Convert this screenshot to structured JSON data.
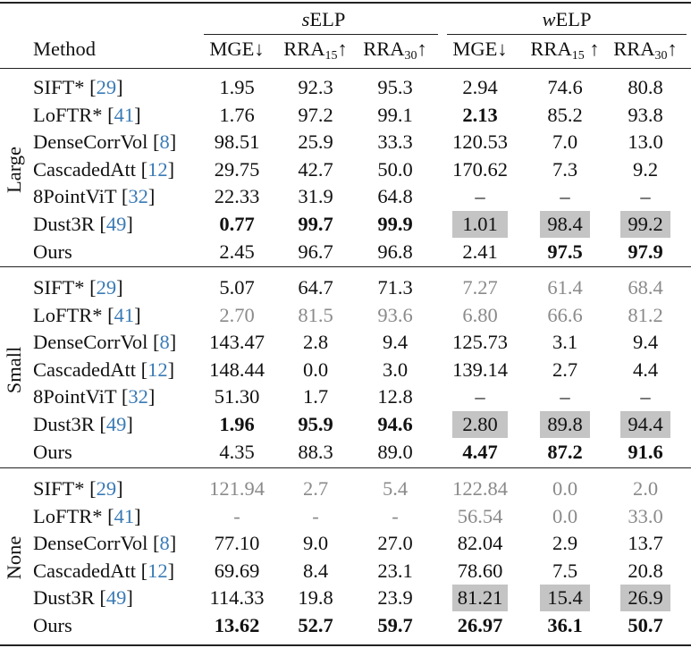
{
  "header": {
    "method": "Method",
    "selp": {
      "prefix": "s",
      "suffix": "ELP"
    },
    "welp": {
      "prefix": "w",
      "suffix": "ELP"
    },
    "cols": [
      {
        "base": "MGE",
        "sub": "",
        "arrow": "↓"
      },
      {
        "base": "RRA",
        "sub": "15",
        "arrow": "↑"
      },
      {
        "base": "RRA",
        "sub": "30",
        "arrow": "↑"
      },
      {
        "base": "MGE",
        "sub": "",
        "arrow": "↓"
      },
      {
        "base": "RRA",
        "sub": "15",
        "arrow": " ↑"
      },
      {
        "base": "RRA",
        "sub": "30",
        "arrow": "↑"
      }
    ]
  },
  "groups": [
    {
      "name": "Large",
      "rows": [
        {
          "method": "SIFT*",
          "ref": "29",
          "cells": [
            {
              "v": "1.95"
            },
            {
              "v": "92.3"
            },
            {
              "v": "95.3"
            },
            {
              "v": "2.94"
            },
            {
              "v": "74.6"
            },
            {
              "v": "80.8"
            }
          ]
        },
        {
          "method": "LoFTR*",
          "ref": "41",
          "cells": [
            {
              "v": "1.76"
            },
            {
              "v": "97.2"
            },
            {
              "v": "99.1"
            },
            {
              "v": "2.13",
              "bold": true
            },
            {
              "v": "85.2"
            },
            {
              "v": "93.8"
            }
          ]
        },
        {
          "method": "DenseCorrVol",
          "ref": "8",
          "cells": [
            {
              "v": "98.51"
            },
            {
              "v": "25.9"
            },
            {
              "v": "33.3"
            },
            {
              "v": "120.53"
            },
            {
              "v": "7.0"
            },
            {
              "v": "13.0"
            }
          ]
        },
        {
          "method": "CascadedAtt",
          "ref": "12",
          "cells": [
            {
              "v": "29.75"
            },
            {
              "v": "42.7"
            },
            {
              "v": "50.0"
            },
            {
              "v": "170.62"
            },
            {
              "v": "7.3"
            },
            {
              "v": "9.2"
            }
          ]
        },
        {
          "method": "8PointViT",
          "ref": "32",
          "cells": [
            {
              "v": "22.33"
            },
            {
              "v": "31.9"
            },
            {
              "v": "64.8"
            },
            {
              "v": "–"
            },
            {
              "v": "–"
            },
            {
              "v": "–"
            }
          ]
        },
        {
          "method": "Dust3R",
          "ref": "49",
          "cells": [
            {
              "v": "0.77",
              "bold": true
            },
            {
              "v": "99.7",
              "bold": true
            },
            {
              "v": "99.9",
              "bold": true
            },
            {
              "v": "1.01",
              "shade": true
            },
            {
              "v": "98.4",
              "shade": true
            },
            {
              "v": "99.2",
              "shade": true
            }
          ]
        },
        {
          "method": "Ours",
          "ref": "",
          "cells": [
            {
              "v": "2.45"
            },
            {
              "v": "96.7"
            },
            {
              "v": "96.8"
            },
            {
              "v": "2.41"
            },
            {
              "v": "97.5",
              "bold": true
            },
            {
              "v": "97.9",
              "bold": true
            }
          ]
        }
      ]
    },
    {
      "name": "Small",
      "rows": [
        {
          "method": "SIFT*",
          "ref": "29",
          "cells": [
            {
              "v": "5.07"
            },
            {
              "v": "64.7"
            },
            {
              "v": "71.3"
            },
            {
              "v": "7.27",
              "gray": true
            },
            {
              "v": "61.4",
              "gray": true
            },
            {
              "v": "68.4",
              "gray": true
            }
          ]
        },
        {
          "method": "LoFTR*",
          "ref": "41",
          "cells": [
            {
              "v": "2.70",
              "gray": true
            },
            {
              "v": "81.5",
              "gray": true
            },
            {
              "v": "93.6",
              "gray": true
            },
            {
              "v": "6.80",
              "gray": true
            },
            {
              "v": "66.6",
              "gray": true
            },
            {
              "v": "81.2",
              "gray": true
            }
          ]
        },
        {
          "method": "DenseCorrVol",
          "ref": "8",
          "cells": [
            {
              "v": "143.47"
            },
            {
              "v": "2.8"
            },
            {
              "v": "9.4"
            },
            {
              "v": "125.73"
            },
            {
              "v": "3.1"
            },
            {
              "v": "9.4"
            }
          ]
        },
        {
          "method": "CascadedAtt",
          "ref": "12",
          "cells": [
            {
              "v": "148.44"
            },
            {
              "v": "0.0"
            },
            {
              "v": "3.0"
            },
            {
              "v": "139.14"
            },
            {
              "v": "2.7"
            },
            {
              "v": "4.4"
            }
          ]
        },
        {
          "method": "8PointViT",
          "ref": "32",
          "cells": [
            {
              "v": "51.30"
            },
            {
              "v": "1.7"
            },
            {
              "v": "12.8"
            },
            {
              "v": "–"
            },
            {
              "v": "–"
            },
            {
              "v": "–"
            }
          ]
        },
        {
          "method": "Dust3R",
          "ref": "49",
          "cells": [
            {
              "v": "1.96",
              "bold": true
            },
            {
              "v": "95.9",
              "bold": true
            },
            {
              "v": "94.6",
              "bold": true
            },
            {
              "v": "2.80",
              "shade": true
            },
            {
              "v": "89.8",
              "shade": true
            },
            {
              "v": "94.4",
              "shade": true
            }
          ]
        },
        {
          "method": "Ours",
          "ref": "",
          "cells": [
            {
              "v": "4.35"
            },
            {
              "v": "88.3"
            },
            {
              "v": "89.0"
            },
            {
              "v": "4.47",
              "bold": true
            },
            {
              "v": "87.2",
              "bold": true
            },
            {
              "v": "91.6",
              "bold": true
            }
          ]
        }
      ]
    },
    {
      "name": "None",
      "rows": [
        {
          "method": "SIFT*",
          "ref": "29",
          "cells": [
            {
              "v": "121.94",
              "gray": true
            },
            {
              "v": "2.7",
              "gray": true
            },
            {
              "v": "5.4",
              "gray": true
            },
            {
              "v": "122.84",
              "gray": true
            },
            {
              "v": "0.0",
              "gray": true
            },
            {
              "v": "2.0",
              "gray": true
            }
          ]
        },
        {
          "method": "LoFTR*",
          "ref": "41",
          "cells": [
            {
              "v": "-",
              "gray": true
            },
            {
              "v": "-",
              "gray": true
            },
            {
              "v": "-",
              "gray": true
            },
            {
              "v": "56.54",
              "gray": true
            },
            {
              "v": "0.0",
              "gray": true
            },
            {
              "v": "33.0",
              "gray": true
            }
          ]
        },
        {
          "method": "DenseCorrVol",
          "ref": "8",
          "cells": [
            {
              "v": "77.10"
            },
            {
              "v": "9.0"
            },
            {
              "v": "27.0"
            },
            {
              "v": "82.04"
            },
            {
              "v": "2.9"
            },
            {
              "v": "13.7"
            }
          ]
        },
        {
          "method": "CascadedAtt",
          "ref": "12",
          "cells": [
            {
              "v": "69.69"
            },
            {
              "v": "8.4"
            },
            {
              "v": "23.1"
            },
            {
              "v": "78.60"
            },
            {
              "v": "7.5"
            },
            {
              "v": "20.8"
            }
          ]
        },
        {
          "method": "Dust3R",
          "ref": "49",
          "cells": [
            {
              "v": "114.33"
            },
            {
              "v": "19.8"
            },
            {
              "v": "23.9"
            },
            {
              "v": "81.21",
              "shade": true
            },
            {
              "v": "15.4",
              "shade": true
            },
            {
              "v": "26.9",
              "shade": true
            }
          ]
        },
        {
          "method": "Ours",
          "ref": "",
          "cells": [
            {
              "v": "13.62",
              "bold": true
            },
            {
              "v": "52.7",
              "bold": true
            },
            {
              "v": "59.7",
              "bold": true
            },
            {
              "v": "26.97",
              "bold": true
            },
            {
              "v": "36.1",
              "bold": true
            },
            {
              "v": "50.7",
              "bold": true
            }
          ]
        }
      ]
    }
  ]
}
